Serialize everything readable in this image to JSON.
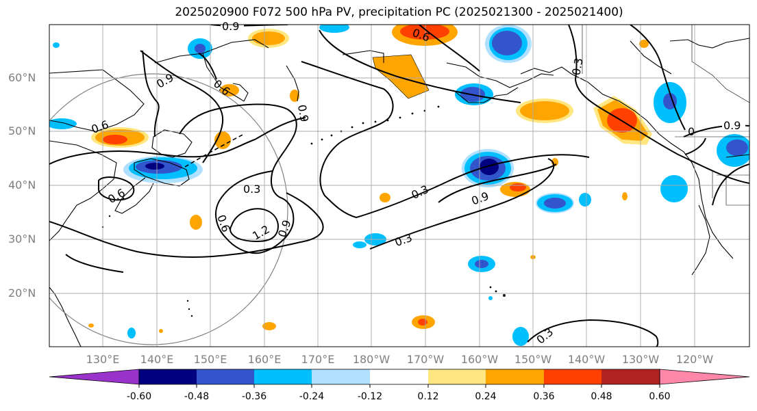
{
  "title": "2025020900 F072 500 hPa PV, precipitation PC (2025021300 - 2025021400)",
  "lat_labels": [
    "60°N",
    "50°N",
    "40°N",
    "30°N",
    "20°N"
  ],
  "lon_labels": [
    "130°E",
    "140°E",
    "150°E",
    "160°E",
    "170°E",
    "180°W",
    "170°W",
    "160°W",
    "150°W",
    "140°W",
    "130°W",
    "120°W"
  ],
  "contour_labels": [
    "0.9",
    "0.6",
    "0.9",
    "0.6",
    "0.9",
    "0.3",
    "0.6",
    "0.6",
    "0.3",
    "0.6",
    "1.2",
    "0.9",
    "0.3",
    "0.3",
    "0.3",
    "0.9",
    "0",
    "0.9"
  ],
  "colorbar": {
    "ticks": [
      "-0.60",
      "-0.48",
      "-0.36",
      "-0.24",
      "-0.12",
      "0.12",
      "0.24",
      "0.36",
      "0.48",
      "0.60"
    ],
    "colors": [
      "#9933cc",
      "#000080",
      "#3355cc",
      "#00bfff",
      "#b0e0ff",
      "#ffffff",
      "#ffe680",
      "#ffa500",
      "#ff4000",
      "#b22222",
      "#ff88aa"
    ]
  }
}
